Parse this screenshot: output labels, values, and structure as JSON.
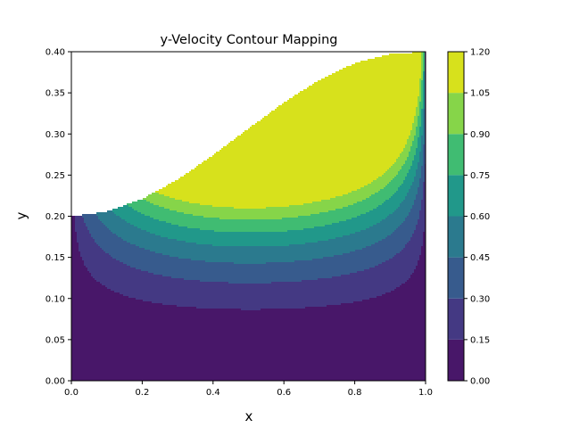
{
  "chart_data": {
    "type": "contour",
    "title": "y-Velocity Contour Mapping",
    "xlabel": "x",
    "ylabel": "y",
    "xlim": [
      0.0,
      1.0
    ],
    "ylim": [
      0.0,
      0.4
    ],
    "x_ticks": [
      "0.0",
      "0.2",
      "0.4",
      "0.6",
      "0.8",
      "1.0"
    ],
    "y_ticks": [
      "0.00",
      "0.05",
      "0.10",
      "0.15",
      "0.20",
      "0.25",
      "0.30",
      "0.35",
      "0.40"
    ],
    "levels": [
      0.0,
      0.15,
      0.3,
      0.45,
      0.6,
      0.75,
      0.9,
      1.05,
      1.2
    ],
    "colorbar_ticks": [
      "0.00",
      "0.15",
      "0.30",
      "0.45",
      "0.60",
      "0.75",
      "0.90",
      "1.05",
      "1.20"
    ],
    "colors": [
      "#481769",
      "#443983",
      "#375b8d",
      "#2b7a8e",
      "#21988a",
      "#40bc72",
      "#86d549",
      "#d7e11c"
    ],
    "domain_upper_boundary": [
      [
        0.0,
        0.2
      ],
      [
        0.1,
        0.2055
      ],
      [
        0.2,
        0.2211
      ],
      [
        0.3,
        0.2446
      ],
      [
        0.4,
        0.2741
      ],
      [
        0.5,
        0.3065
      ],
      [
        0.6,
        0.3382
      ],
      [
        0.7,
        0.3657
      ],
      [
        0.8,
        0.3861
      ],
      [
        0.9,
        0.3971
      ],
      [
        1.0,
        0.4
      ]
    ],
    "color_scale": "viridis"
  }
}
